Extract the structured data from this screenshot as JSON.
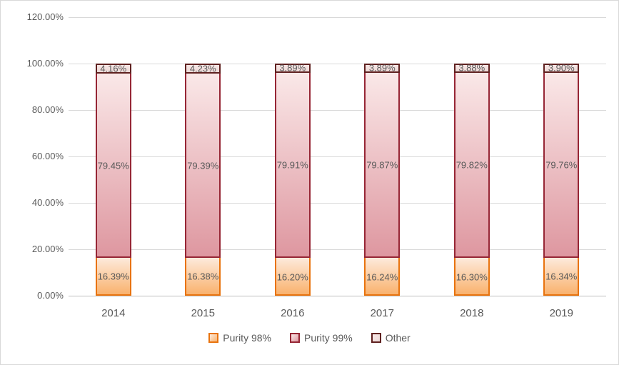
{
  "chart_data": {
    "type": "bar",
    "stacked": true,
    "title": "",
    "xlabel": "",
    "ylabel": "",
    "categories": [
      "2014",
      "2015",
      "2016",
      "2017",
      "2018",
      "2019"
    ],
    "series": [
      {
        "name": "Purity 98%",
        "values": [
          16.39,
          16.38,
          16.2,
          16.24,
          16.3,
          16.34
        ],
        "labels": [
          "16.39%",
          "16.38%",
          "16.20%",
          "16.24%",
          "16.30%",
          "16.34%"
        ],
        "fill_top": "#FDEADB",
        "fill_bottom": "#F9B26E",
        "border_color": "#E8730E"
      },
      {
        "name": "Purity 99%",
        "values": [
          79.45,
          79.39,
          79.91,
          79.87,
          79.82,
          79.76
        ],
        "labels": [
          "79.45%",
          "79.39%",
          "79.91%",
          "79.87%",
          "79.82%",
          "79.76%"
        ],
        "fill_top": "#FAE8E8",
        "fill_bottom": "#DE97A0",
        "border_color": "#962635"
      },
      {
        "name": "Other",
        "values": [
          4.16,
          4.23,
          3.89,
          3.89,
          3.88,
          3.9
        ],
        "labels": [
          "4.16%",
          "4.23%",
          "3.89%",
          "3.89%",
          "3.88%",
          "3.90%"
        ],
        "fill_top": "#F7E7E6",
        "fill_bottom": "#EDD9D7",
        "border_color": "#5F2120"
      }
    ],
    "ylim": [
      0,
      120
    ],
    "y_ticks": [
      {
        "value": 0,
        "label": "0.00%"
      },
      {
        "value": 20,
        "label": "20.00%"
      },
      {
        "value": 40,
        "label": "40.00%"
      },
      {
        "value": 60,
        "label": "60.00%"
      },
      {
        "value": 80,
        "label": "80.00%"
      },
      {
        "value": 100,
        "label": "100.00%"
      },
      {
        "value": 120,
        "label": "120.00%"
      }
    ],
    "grid": true,
    "legend_position": "bottom"
  },
  "styles": {
    "text_color": "#595959",
    "grid_color": "#D9D9D9",
    "axis_color": "#BFBFBF",
    "chart_border": "#D9D9D9",
    "background": "#FFFFFF"
  }
}
